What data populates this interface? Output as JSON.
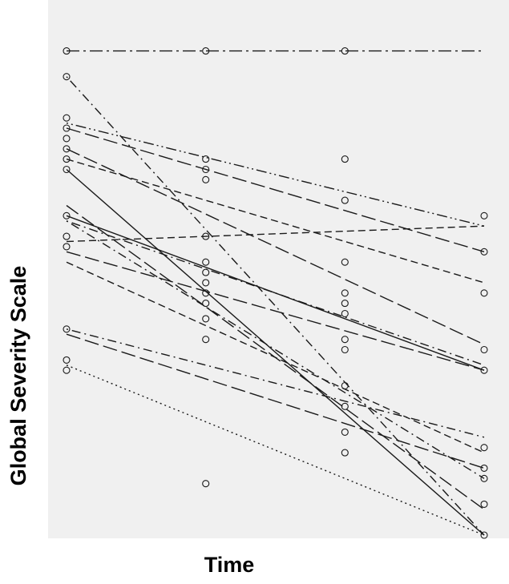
{
  "chart_data": {
    "type": "line",
    "title": "",
    "xlabel": "Time",
    "ylabel": "Global Severity Scale",
    "x": [
      1,
      2,
      3,
      4
    ],
    "xlim": [
      0.85,
      4.02
    ],
    "ylim": [
      0,
      100
    ],
    "tick_labels": false,
    "grid": false,
    "legend": "none",
    "colors": {
      "panel": "#f0f0f0",
      "ink": "#1a1a1a",
      "background": "#ffffff"
    },
    "points": [
      [
        1,
        94
      ],
      [
        1,
        89
      ],
      [
        1,
        81
      ],
      [
        1,
        79
      ],
      [
        1,
        77
      ],
      [
        1,
        75
      ],
      [
        1,
        73
      ],
      [
        1,
        71
      ],
      [
        1,
        62
      ],
      [
        1,
        58
      ],
      [
        1,
        56
      ],
      [
        1,
        40
      ],
      [
        1,
        34
      ],
      [
        1,
        32
      ],
      [
        2,
        94
      ],
      [
        2,
        73
      ],
      [
        2,
        71
      ],
      [
        2,
        69
      ],
      [
        2,
        58
      ],
      [
        2,
        53
      ],
      [
        2,
        51
      ],
      [
        2,
        49
      ],
      [
        2,
        47
      ],
      [
        2,
        45
      ],
      [
        2,
        42
      ],
      [
        2,
        38
      ],
      [
        2,
        10
      ],
      [
        3,
        94
      ],
      [
        3,
        73
      ],
      [
        3,
        65
      ],
      [
        3,
        53
      ],
      [
        3,
        47
      ],
      [
        3,
        45
      ],
      [
        3,
        43
      ],
      [
        3,
        38
      ],
      [
        3,
        36
      ],
      [
        3,
        29
      ],
      [
        3,
        25
      ],
      [
        3,
        20
      ],
      [
        3,
        16
      ],
      [
        4,
        62
      ],
      [
        4,
        55
      ],
      [
        4,
        47
      ],
      [
        4,
        36
      ],
      [
        4,
        32
      ],
      [
        4,
        17
      ],
      [
        4,
        13
      ],
      [
        4,
        11
      ],
      [
        4,
        6
      ],
      [
        4,
        0
      ]
    ],
    "series": [
      {
        "style": "longdash-dot",
        "x": [
          1,
          4
        ],
        "values": [
          94,
          94
        ]
      },
      {
        "style": "dot-dash",
        "x": [
          1,
          4
        ],
        "values": [
          89,
          0
        ]
      },
      {
        "style": "dot-dot-dash",
        "x": [
          1,
          4
        ],
        "values": [
          80,
          60
        ]
      },
      {
        "style": "long-dash",
        "x": [
          1,
          4
        ],
        "values": [
          79,
          55
        ]
      },
      {
        "style": "long-dash",
        "x": [
          1,
          4
        ],
        "values": [
          75,
          37
        ]
      },
      {
        "style": "dashed",
        "x": [
          1,
          4
        ],
        "values": [
          73,
          49
        ]
      },
      {
        "style": "solid",
        "x": [
          1,
          4
        ],
        "values": [
          71,
          0
        ]
      },
      {
        "style": "long-dash",
        "x": [
          1,
          4
        ],
        "values": [
          64,
          5
        ]
      },
      {
        "style": "solid",
        "x": [
          1,
          4
        ],
        "values": [
          62,
          32
        ]
      },
      {
        "style": "dot-dash",
        "x": [
          1,
          4
        ],
        "values": [
          61,
          33
        ]
      },
      {
        "style": "dashed",
        "x": [
          1,
          4
        ],
        "values": [
          57,
          60
        ]
      },
      {
        "style": "dot-dash",
        "x": [
          1,
          4
        ],
        "values": [
          61,
          11
        ]
      },
      {
        "style": "long-dash",
        "x": [
          1,
          4
        ],
        "values": [
          55,
          32
        ]
      },
      {
        "style": "dashed",
        "x": [
          1,
          4
        ],
        "values": [
          53,
          16
        ]
      },
      {
        "style": "dot-dash",
        "x": [
          1,
          4
        ],
        "values": [
          40,
          19
        ]
      },
      {
        "style": "long-dash",
        "x": [
          1,
          4
        ],
        "values": [
          39,
          13
        ]
      },
      {
        "style": "dotted",
        "x": [
          1,
          4
        ],
        "values": [
          33,
          0
        ]
      }
    ]
  }
}
